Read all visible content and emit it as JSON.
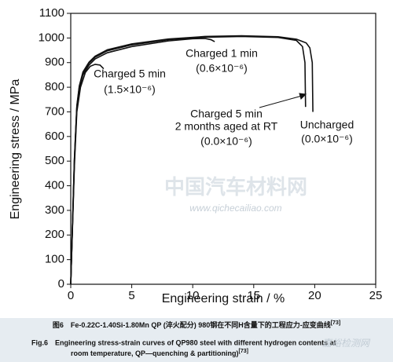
{
  "chart_data": {
    "type": "line",
    "xlabel": "Engineering strain / %",
    "ylabel": "Engineering stress / MPa",
    "xlim": [
      0,
      25
    ],
    "xticks": [
      0,
      5,
      10,
      15,
      20,
      25
    ],
    "ylim": [
      0,
      1100
    ],
    "yticks": [
      0,
      100,
      200,
      300,
      400,
      500,
      600,
      700,
      800,
      900,
      1000,
      1100
    ],
    "series": [
      {
        "color": "#111111",
        "x": [
          0,
          0.3,
          0.5,
          0.8,
          1.2,
          1.6,
          2.0,
          2.4,
          2.7
        ],
        "values": [
          0,
          480,
          700,
          800,
          860,
          885,
          893,
          890,
          875
        ]
      },
      {
        "color": "#111111",
        "x": [
          0,
          0.3,
          0.5,
          0.7,
          1,
          1.5,
          2,
          3,
          5,
          8,
          10,
          11,
          11.5,
          11.8
        ],
        "values": [
          0,
          500,
          715,
          795,
          850,
          890,
          915,
          940,
          965,
          988,
          997,
          998,
          993,
          985
        ]
      },
      {
        "color": "#111111",
        "x": [
          0,
          0.3,
          0.5,
          0.7,
          1,
          1.5,
          2,
          3,
          5,
          8,
          11,
          14,
          17,
          18.5,
          19,
          19.2,
          19.25
        ],
        "values": [
          0,
          505,
          720,
          800,
          858,
          898,
          922,
          948,
          972,
          993,
          1003,
          1006,
          1002,
          990,
          965,
          900,
          720
        ]
      },
      {
        "color": "#111111",
        "x": [
          0,
          0.3,
          0.5,
          0.7,
          1,
          1.5,
          2,
          3,
          5,
          8,
          11,
          14,
          17,
          18.5,
          19.3,
          19.6,
          19.8,
          19.85
        ],
        "values": [
          0,
          510,
          725,
          805,
          862,
          902,
          926,
          952,
          976,
          996,
          1006,
          1009,
          1005,
          995,
          980,
          960,
          900,
          700
        ]
      }
    ],
    "annotations": [
      "Charged 5 min",
      "(1.5×10⁻⁶)",
      "Charged 1 min",
      "(0.6×10⁻⁶)",
      "Charged 5 min",
      "2 months aged at RT",
      "(0.0×10⁻⁶)",
      "Uncharged",
      "(0.0×10⁻⁶)"
    ]
  },
  "watermark": {
    "site": "中国汽车材料网",
    "url": "www.qichecailiao.com",
    "corner": "嘉峪检测网"
  },
  "caption": {
    "zh": "图6　Fe-0.22C-1.40Si-1.80Mn QP (淬火配分) 980钢在不同H含量下的工程应力-应变曲线",
    "zh_ref": "[73]",
    "en_line1": "Fig.6　Engineering stress-strain curves of QP980 steel with different hydrogen contents at",
    "en_line2": "room temperature, QP—quenching & partitioning)",
    "en_ref": "[73]"
  }
}
